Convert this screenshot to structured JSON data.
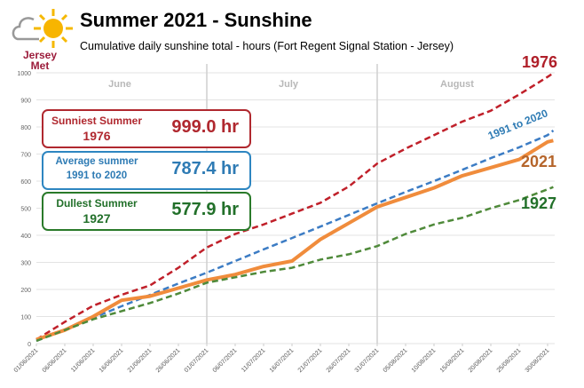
{
  "title": "Summer 2021 - Sunshine",
  "subtitle": "Cumulative daily sunshine total  - hours  (Fort Regent Signal Station - Jersey)",
  "logo": {
    "text_line1": "Jersey",
    "text_line2": "Met"
  },
  "boxes": {
    "sunniest": {
      "label": "Sunniest Summer",
      "year": "1976",
      "value": "999.0 hr",
      "color": "#b0282f"
    },
    "average": {
      "label": "Average summer",
      "year": "1991 to 2020",
      "value": "787.4 hr",
      "color": "#2e7bb4"
    },
    "dullest": {
      "label": "Dullest Summer",
      "year": "1927",
      "value": "577.9 hr",
      "color": "#22702a"
    }
  },
  "chart_data": {
    "type": "line",
    "title": "Summer 2021 - Sunshine",
    "ylim": [
      0,
      1000
    ],
    "yticks": [
      0,
      100,
      200,
      300,
      400,
      500,
      600,
      700,
      800,
      900,
      1000
    ],
    "grid": true,
    "months": [
      "June",
      "July",
      "August"
    ],
    "x_tick_labels": [
      "01/06/2021",
      "06/06/2021",
      "11/06/2021",
      "16/06/2021",
      "21/06/2021",
      "26/06/2021",
      "01/07/2021",
      "06/07/2021",
      "11/07/2021",
      "16/07/2021",
      "21/07/2021",
      "26/07/2021",
      "31/07/2021",
      "05/08/2021",
      "10/08/2021",
      "15/08/2021",
      "20/08/2021",
      "25/08/2021",
      "30/08/2021"
    ],
    "x": [
      "01/06/2021",
      "06/06/2021",
      "11/06/2021",
      "16/06/2021",
      "21/06/2021",
      "26/06/2021",
      "01/07/2021",
      "06/07/2021",
      "11/07/2021",
      "16/07/2021",
      "21/07/2021",
      "26/07/2021",
      "31/07/2021",
      "05/08/2021",
      "10/08/2021",
      "15/08/2021",
      "20/08/2021",
      "25/08/2021",
      "30/08/2021",
      "31/08/2021"
    ],
    "series": [
      {
        "name": "1976",
        "color": "#c0202a",
        "style": "dashed",
        "values": [
          15,
          80,
          140,
          180,
          215,
          280,
          355,
          405,
          440,
          480,
          520,
          580,
          665,
          720,
          770,
          820,
          860,
          920,
          985,
          999
        ]
      },
      {
        "name": "1991 to 2020",
        "color": "#3c7cc4",
        "style": "dashed",
        "values": [
          10,
          52,
          95,
          138,
          180,
          222,
          262,
          305,
          348,
          390,
          432,
          475,
          518,
          560,
          600,
          642,
          685,
          725,
          770,
          787
        ]
      },
      {
        "name": "2021",
        "color": "#f08c3c",
        "style": "solid",
        "values": [
          15,
          50,
          100,
          160,
          175,
          205,
          235,
          255,
          285,
          305,
          385,
          445,
          505,
          540,
          575,
          620,
          650,
          680,
          745,
          750
        ]
      },
      {
        "name": "1927",
        "color": "#4f8a3a",
        "style": "dashed",
        "values": [
          10,
          50,
          90,
          120,
          150,
          185,
          225,
          245,
          265,
          280,
          310,
          330,
          360,
          405,
          440,
          465,
          500,
          530,
          570,
          578
        ]
      }
    ],
    "series_label_colors": {
      "1976": "#b0202a",
      "1991 to 2020": "#2e7bb4",
      "2021": "#b5652b",
      "1927": "#22702a"
    }
  }
}
